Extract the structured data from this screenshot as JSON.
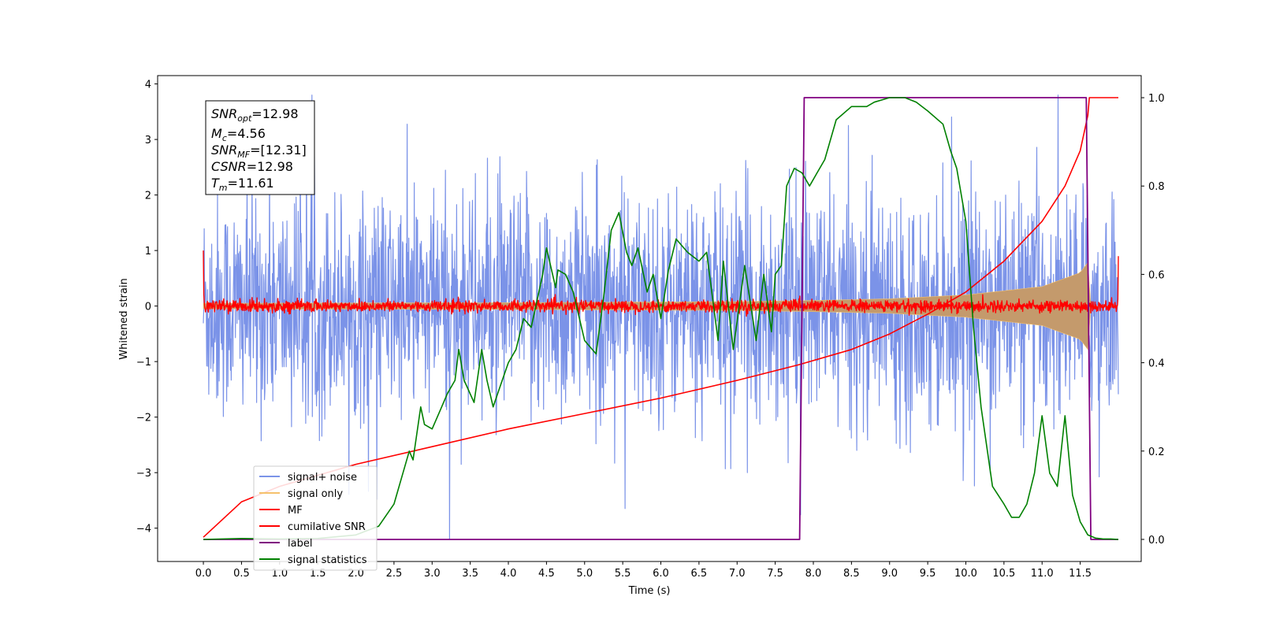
{
  "chart_data": {
    "type": "line",
    "xlabel": "Time (s)",
    "ylabel": "Whitened strain",
    "xlim": [
      -0.6,
      12.3
    ],
    "ylim": [
      -4.6,
      4.15
    ],
    "y2lim": [
      -0.05,
      1.05
    ],
    "x_ticks": [
      "0.0",
      "0.5",
      "1.0",
      "1.5",
      "2.0",
      "2.5",
      "3.0",
      "3.5",
      "4.0",
      "4.5",
      "5.0",
      "5.5",
      "6.0",
      "6.5",
      "7.0",
      "7.5",
      "8.0",
      "8.5",
      "9.0",
      "9.5",
      "10.0",
      "10.5",
      "11.0",
      "11.5"
    ],
    "y_ticks": [
      "4",
      "3",
      "2",
      "1",
      "0",
      "−1",
      "−2",
      "−3",
      "−4"
    ],
    "y2_ticks": [
      "1.0",
      "0.8",
      "0.6",
      "0.4",
      "0.2",
      "0.0"
    ],
    "info_box": {
      "snr_opt": "=12.98",
      "mc": "=4.56",
      "snr_mf": "=[12.31]",
      "csnr": "=12.98",
      "tm": "=11.61"
    },
    "legend": [
      "signal+ noise",
      "signal only",
      "MF",
      "cumilative SNR",
      "label",
      "signal statistics"
    ],
    "colors": {
      "signal_noise": "#7b93e8",
      "signal_only": "#f5c16c",
      "signal_fill": "#c49a6c",
      "mf": "#ff0000",
      "cumulative_snr": "#ff0000",
      "label": "#800080",
      "signal_statistics": "#008000"
    },
    "series": [
      {
        "name": "signal+ noise",
        "axis": "left",
        "x_range": [
          0,
          12.0
        ],
        "envelope": "noise spanning roughly -2.5 to 2.5 with spikes to about ±3.5"
      },
      {
        "name": "signal only",
        "axis": "left",
        "x_range": [
          0,
          12.0
        ],
        "envelope_amplitude": {
          "x": [
            0.0,
            4.0,
            7.0,
            8.0,
            9.0,
            10.0,
            11.0,
            11.5,
            11.61,
            11.62
          ],
          "y": [
            0.05,
            0.06,
            0.08,
            0.1,
            0.13,
            0.2,
            0.35,
            0.6,
            0.8,
            0.0
          ]
        }
      },
      {
        "name": "MF",
        "axis": "left",
        "x_range": [
          0,
          12.0
        ],
        "level": 0.0,
        "spread": 0.12,
        "edge_values": {
          "start": 1.0,
          "end": 0.9
        }
      },
      {
        "name": "cumilative SNR",
        "axis": "right",
        "x": [
          0.0,
          0.5,
          1.0,
          2.0,
          3.0,
          4.0,
          5.0,
          6.0,
          7.0,
          7.8,
          8.5,
          9.0,
          9.5,
          10.0,
          10.5,
          11.0,
          11.3,
          11.5,
          11.6,
          11.62,
          12.0
        ],
        "values": [
          0.005,
          0.085,
          0.12,
          0.17,
          0.21,
          0.25,
          0.285,
          0.32,
          0.36,
          0.395,
          0.43,
          0.465,
          0.51,
          0.56,
          0.63,
          0.72,
          0.8,
          0.88,
          0.96,
          1.0,
          1.0
        ]
      },
      {
        "name": "label",
        "axis": "right",
        "x": [
          0.0,
          7.82,
          7.88,
          11.58,
          11.64,
          12.0
        ],
        "values": [
          0.0,
          0.0,
          1.0,
          1.0,
          0.0,
          0.0
        ]
      },
      {
        "name": "signal statistics",
        "axis": "right",
        "x": [
          0.0,
          0.5,
          1.0,
          1.5,
          2.0,
          2.3,
          2.5,
          2.7,
          2.75,
          2.85,
          2.9,
          3.0,
          3.1,
          3.2,
          3.3,
          3.35,
          3.42,
          3.55,
          3.65,
          3.72,
          3.8,
          3.9,
          4.0,
          4.1,
          4.2,
          4.3,
          4.35,
          4.45,
          4.5,
          4.62,
          4.65,
          4.75,
          4.85,
          5.0,
          5.15,
          5.25,
          5.35,
          5.45,
          5.55,
          5.62,
          5.7,
          5.82,
          5.9,
          6.0,
          6.1,
          6.2,
          6.35,
          6.5,
          6.6,
          6.75,
          6.82,
          6.95,
          7.1,
          7.25,
          7.35,
          7.45,
          7.5,
          7.58,
          7.65,
          7.75,
          7.85,
          7.95,
          8.05,
          8.15,
          8.3,
          8.5,
          8.7,
          8.8,
          9.0,
          9.2,
          9.35,
          9.5,
          9.7,
          9.8,
          9.88,
          10.0,
          10.1,
          10.2,
          10.35,
          10.5,
          10.6,
          10.7,
          10.8,
          10.9,
          11.0,
          11.1,
          11.2,
          11.3,
          11.4,
          11.5,
          11.6,
          11.7,
          11.8,
          11.9,
          12.0
        ],
        "values": [
          0.0,
          0.002,
          0.001,
          0.002,
          0.01,
          0.03,
          0.08,
          0.2,
          0.18,
          0.3,
          0.26,
          0.25,
          0.29,
          0.33,
          0.36,
          0.43,
          0.36,
          0.31,
          0.43,
          0.36,
          0.3,
          0.35,
          0.4,
          0.43,
          0.5,
          0.48,
          0.52,
          0.6,
          0.66,
          0.57,
          0.61,
          0.6,
          0.56,
          0.45,
          0.42,
          0.55,
          0.7,
          0.74,
          0.65,
          0.62,
          0.66,
          0.56,
          0.6,
          0.5,
          0.61,
          0.68,
          0.65,
          0.63,
          0.65,
          0.45,
          0.63,
          0.43,
          0.62,
          0.45,
          0.6,
          0.47,
          0.6,
          0.62,
          0.8,
          0.84,
          0.83,
          0.8,
          0.83,
          0.86,
          0.95,
          0.98,
          0.98,
          0.99,
          1.0,
          1.0,
          0.99,
          0.97,
          0.94,
          0.88,
          0.84,
          0.72,
          0.48,
          0.3,
          0.12,
          0.08,
          0.05,
          0.05,
          0.08,
          0.15,
          0.28,
          0.15,
          0.12,
          0.28,
          0.1,
          0.04,
          0.01,
          0.003,
          0.001,
          0.001,
          0.0
        ]
      }
    ]
  }
}
